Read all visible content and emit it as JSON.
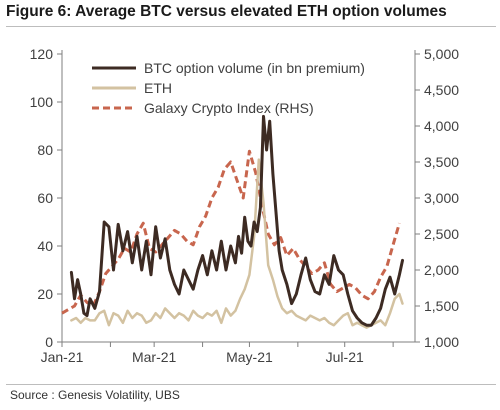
{
  "header": {
    "title": "Figure 6: Average BTC versus elevated ETH option volumes",
    "source": "Source : Genesis Volatility, UBS"
  },
  "chart_data": {
    "type": "line",
    "title": "Figure 6: Average BTC versus elevated ETH option volumes",
    "xlabel": "",
    "ylabel": "",
    "ylim": [
      0,
      120
    ],
    "y2lim": [
      1000,
      5000
    ],
    "x_tick_labels": [
      "Jan-21",
      "Mar-21",
      "May-21",
      "Jul-21"
    ],
    "y_tick_labels": [
      "0",
      "20",
      "40",
      "60",
      "80",
      "100",
      "120"
    ],
    "y2_tick_labels": [
      "1,000",
      "1,500",
      "2,000",
      "2,500",
      "3,000",
      "3,500",
      "4,000",
      "4,500",
      "5,000"
    ],
    "legend_position": "top-center",
    "grid": false,
    "series": [
      {
        "name": "BTC option volume (in bn premium)",
        "axis": "left",
        "color": "#3d2b23",
        "style": "solid",
        "x": [
          "2021-01-07",
          "2021-01-09",
          "2021-01-11",
          "2021-01-13",
          "2021-01-15",
          "2021-01-17",
          "2021-01-19",
          "2021-01-22",
          "2021-01-25",
          "2021-01-28",
          "2021-01-31",
          "2021-02-03",
          "2021-02-06",
          "2021-02-09",
          "2021-02-12",
          "2021-02-15",
          "2021-02-18",
          "2021-02-21",
          "2021-02-24",
          "2021-02-27",
          "2021-03-02",
          "2021-03-05",
          "2021-03-08",
          "2021-03-11",
          "2021-03-14",
          "2021-03-17",
          "2021-03-20",
          "2021-03-23",
          "2021-03-26",
          "2021-03-29",
          "2021-04-01",
          "2021-04-04",
          "2021-04-07",
          "2021-04-10",
          "2021-04-13",
          "2021-04-16",
          "2021-04-19",
          "2021-04-22",
          "2021-04-24",
          "2021-04-26",
          "2021-04-28",
          "2021-04-30",
          "2021-05-02",
          "2021-05-04",
          "2021-05-06",
          "2021-05-08",
          "2021-05-10",
          "2021-05-12",
          "2021-05-14",
          "2021-05-16",
          "2021-05-18",
          "2021-05-20",
          "2021-05-22",
          "2021-05-25",
          "2021-05-28",
          "2021-05-31",
          "2021-06-03",
          "2021-06-06",
          "2021-06-09",
          "2021-06-12",
          "2021-06-15",
          "2021-06-18",
          "2021-06-21",
          "2021-06-24",
          "2021-06-27",
          "2021-06-30",
          "2021-07-03",
          "2021-07-06",
          "2021-07-09",
          "2021-07-12",
          "2021-07-15",
          "2021-07-18",
          "2021-07-21",
          "2021-07-24",
          "2021-07-27",
          "2021-07-30",
          "2021-08-02",
          "2021-08-05",
          "2021-08-07"
        ],
        "y": [
          29,
          18,
          26,
          20,
          12,
          11,
          18,
          14,
          21,
          50,
          48,
          30,
          49,
          38,
          46,
          33,
          44,
          30,
          42,
          28,
          48,
          35,
          43,
          30,
          24,
          20,
          30,
          26,
          22,
          30,
          36,
          28,
          38,
          30,
          42,
          30,
          40,
          33,
          44,
          37,
          52,
          42,
          40,
          50,
          46,
          56,
          94,
          80,
          92,
          70,
          54,
          38,
          30,
          24,
          16,
          20,
          28,
          35,
          26,
          21,
          20,
          28,
          24,
          36,
          30,
          28,
          20,
          13,
          10,
          8,
          7,
          7,
          10,
          14,
          22,
          27,
          20,
          28,
          34
        ],
        "x_is_date": true
      },
      {
        "name": "ETH",
        "axis": "left",
        "color": "#d3c2a1",
        "style": "solid",
        "x": [
          "2021-01-07",
          "2021-01-10",
          "2021-01-13",
          "2021-01-16",
          "2021-01-19",
          "2021-01-22",
          "2021-01-25",
          "2021-01-28",
          "2021-01-31",
          "2021-02-03",
          "2021-02-06",
          "2021-02-09",
          "2021-02-12",
          "2021-02-15",
          "2021-02-18",
          "2021-02-21",
          "2021-02-24",
          "2021-02-27",
          "2021-03-02",
          "2021-03-05",
          "2021-03-08",
          "2021-03-11",
          "2021-03-14",
          "2021-03-17",
          "2021-03-20",
          "2021-03-23",
          "2021-03-26",
          "2021-03-29",
          "2021-04-01",
          "2021-04-04",
          "2021-04-07",
          "2021-04-10",
          "2021-04-13",
          "2021-04-16",
          "2021-04-19",
          "2021-04-22",
          "2021-04-25",
          "2021-04-28",
          "2021-05-01",
          "2021-05-04",
          "2021-05-07",
          "2021-05-10",
          "2021-05-13",
          "2021-05-16",
          "2021-05-19",
          "2021-05-22",
          "2021-05-25",
          "2021-05-28",
          "2021-05-31",
          "2021-06-03",
          "2021-06-06",
          "2021-06-09",
          "2021-06-12",
          "2021-06-15",
          "2021-06-18",
          "2021-06-21",
          "2021-06-24",
          "2021-06-27",
          "2021-06-30",
          "2021-07-03",
          "2021-07-06",
          "2021-07-09",
          "2021-07-12",
          "2021-07-15",
          "2021-07-18",
          "2021-07-21",
          "2021-07-24",
          "2021-07-27",
          "2021-07-30",
          "2021-08-02",
          "2021-08-05",
          "2021-08-07"
        ],
        "y": [
          9,
          10,
          8,
          10,
          9,
          9,
          12,
          13,
          7,
          12,
          11,
          8,
          13,
          10,
          12,
          11,
          8,
          9,
          12,
          10,
          14,
          12,
          10,
          12,
          11,
          9,
          13,
          11,
          10,
          12,
          11,
          13,
          8,
          14,
          11,
          13,
          18,
          22,
          28,
          44,
          76,
          58,
          32,
          26,
          19,
          14,
          12,
          13,
          11,
          10,
          9,
          11,
          10,
          9,
          10,
          8,
          7,
          9,
          11,
          12,
          7,
          8,
          7,
          6,
          7,
          8,
          9,
          7,
          12,
          18,
          20,
          16
        ],
        "x_is_date": true
      },
      {
        "name": "Galaxy Crypto Index (RHS)",
        "axis": "right",
        "color": "#c8664e",
        "style": "dashed",
        "x": [
          "2021-01-01",
          "2021-01-05",
          "2021-01-09",
          "2021-01-13",
          "2021-01-17",
          "2021-01-21",
          "2021-01-25",
          "2021-01-29",
          "2021-02-02",
          "2021-02-06",
          "2021-02-10",
          "2021-02-14",
          "2021-02-18",
          "2021-02-22",
          "2021-02-26",
          "2021-03-02",
          "2021-03-06",
          "2021-03-10",
          "2021-03-14",
          "2021-03-18",
          "2021-03-22",
          "2021-03-26",
          "2021-03-30",
          "2021-04-03",
          "2021-04-07",
          "2021-04-11",
          "2021-04-15",
          "2021-04-19",
          "2021-04-23",
          "2021-04-27",
          "2021-05-01",
          "2021-05-05",
          "2021-05-09",
          "2021-05-13",
          "2021-05-17",
          "2021-05-21",
          "2021-05-25",
          "2021-05-29",
          "2021-06-02",
          "2021-06-06",
          "2021-06-10",
          "2021-06-14",
          "2021-06-18",
          "2021-06-22",
          "2021-06-26",
          "2021-06-30",
          "2021-07-04",
          "2021-07-08",
          "2021-07-12",
          "2021-07-16",
          "2021-07-20",
          "2021-07-24",
          "2021-07-28",
          "2021-08-01",
          "2021-08-05"
        ],
        "y": [
          1400,
          1450,
          1500,
          1650,
          1550,
          1500,
          1700,
          1950,
          2050,
          2150,
          2300,
          2250,
          2500,
          2650,
          2300,
          2250,
          2350,
          2450,
          2550,
          2500,
          2400,
          2350,
          2600,
          2750,
          3000,
          3150,
          3400,
          3500,
          3250,
          3000,
          3650,
          3350,
          2900,
          2500,
          2350,
          2450,
          2200,
          2300,
          2150,
          2050,
          1950,
          2000,
          2100,
          1800,
          1700,
          1750,
          1800,
          1750,
          1650,
          1600,
          1700,
          1900,
          2050,
          2350,
          2650
        ],
        "x_is_date": true
      }
    ]
  },
  "x_domain": [
    "2021-01-01",
    "2021-08-15"
  ]
}
